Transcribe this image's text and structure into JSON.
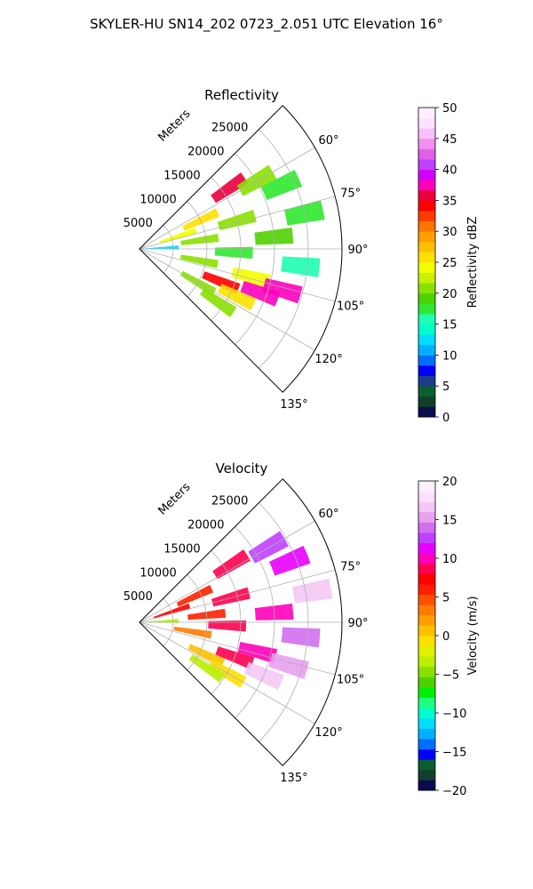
{
  "figure": {
    "suptitle": "SKYLER-HU  SN14_202  0723_2.051 UTC Elevation 16°"
  },
  "chart_data": [
    {
      "type": "heatmap",
      "title": "Reflectivity",
      "radial_label": "Meters",
      "r_ticks": [
        5000,
        10000,
        15000,
        20000,
        25000
      ],
      "r_max": 30000,
      "azimuth_range_deg": [
        45,
        135
      ],
      "azimuth_ticks": [
        "60°",
        "75°",
        "90°",
        "105°",
        "120°",
        "135°"
      ],
      "colorbar": {
        "label": "Reflectivity dBZ",
        "range": [
          0,
          50
        ],
        "ticks": [
          "0",
          "5",
          "10",
          "15",
          "20",
          "25",
          "30",
          "35",
          "40",
          "45",
          "50"
        ]
      },
      "cells": [
        {
          "az": 56,
          "r": 16000,
          "value": 36
        },
        {
          "az": 60,
          "r": 20000,
          "value": 20
        },
        {
          "az": 65,
          "r": 10000,
          "value": 25
        },
        {
          "az": 66,
          "r": 23000,
          "value": 18
        },
        {
          "az": 72,
          "r": 6000,
          "value": 24
        },
        {
          "az": 74,
          "r": 15000,
          "value": 21
        },
        {
          "az": 78,
          "r": 25000,
          "value": 17
        },
        {
          "az": 82,
          "r": 9000,
          "value": 20
        },
        {
          "az": 85,
          "r": 20000,
          "value": 19
        },
        {
          "az": 88,
          "r": 3000,
          "value": 12
        },
        {
          "az": 92,
          "r": 14000,
          "value": 18
        },
        {
          "az": 96,
          "r": 24000,
          "value": 16
        },
        {
          "az": 101,
          "r": 9000,
          "value": 20
        },
        {
          "az": 104,
          "r": 17000,
          "value": 24
        },
        {
          "az": 106,
          "r": 22000,
          "value": 38
        },
        {
          "az": 110,
          "r": 19000,
          "value": 37
        },
        {
          "az": 112,
          "r": 13000,
          "value": 34
        },
        {
          "az": 116,
          "r": 16000,
          "value": 25
        },
        {
          "az": 120,
          "r": 10000,
          "value": 21
        },
        {
          "az": 124,
          "r": 14000,
          "value": 20
        }
      ]
    },
    {
      "type": "heatmap",
      "title": "Velocity",
      "radial_label": "Meters",
      "r_ticks": [
        5000,
        10000,
        15000,
        20000,
        25000
      ],
      "r_max": 30000,
      "azimuth_range_deg": [
        45,
        135
      ],
      "azimuth_ticks": [
        "60°",
        "75°",
        "90°",
        "105°",
        "120°",
        "135°"
      ],
      "colorbar": {
        "label": "Velocity (m/s)",
        "range": [
          -20,
          20
        ],
        "ticks": [
          "−20",
          "−15",
          "−10",
          "−5",
          "0",
          "5",
          "10",
          "15",
          "20"
        ]
      },
      "cells": [
        {
          "az": 58,
          "r": 16000,
          "value": 9
        },
        {
          "az": 60,
          "r": 22000,
          "value": 12
        },
        {
          "az": 65,
          "r": 9000,
          "value": 6
        },
        {
          "az": 68,
          "r": 24000,
          "value": 11
        },
        {
          "az": 72,
          "r": 5000,
          "value": 7
        },
        {
          "az": 75,
          "r": 14000,
          "value": 8
        },
        {
          "az": 80,
          "r": 26000,
          "value": 16
        },
        {
          "az": 84,
          "r": 10000,
          "value": 6
        },
        {
          "az": 86,
          "r": 20000,
          "value": 10
        },
        {
          "az": 88,
          "r": 3000,
          "value": -3
        },
        {
          "az": 92,
          "r": 13000,
          "value": 9
        },
        {
          "az": 95,
          "r": 24000,
          "value": 14
        },
        {
          "az": 100,
          "r": 8000,
          "value": 3
        },
        {
          "az": 104,
          "r": 18000,
          "value": 10
        },
        {
          "az": 106,
          "r": 23000,
          "value": 15
        },
        {
          "az": 110,
          "r": 15000,
          "value": 8
        },
        {
          "az": 113,
          "r": 20000,
          "value": 16
        },
        {
          "az": 116,
          "r": 11000,
          "value": 1
        },
        {
          "az": 120,
          "r": 15000,
          "value": -1
        },
        {
          "az": 124,
          "r": 12000,
          "value": -3
        }
      ]
    }
  ],
  "colormaps": {
    "reflectivity": [
      "#0b0b4f",
      "#123f2c",
      "#0a5f2f",
      "#1d3c8c",
      "#0000ff",
      "#006eff",
      "#00b0ff",
      "#00ddff",
      "#00ffcc",
      "#1effb0",
      "#30e830",
      "#4fd000",
      "#8ae000",
      "#c8f000",
      "#f2ff00",
      "#ffe000",
      "#ffc000",
      "#ff9f00",
      "#ff7400",
      "#ff3c00",
      "#ff0000",
      "#e8003c",
      "#ff00bb",
      "#d100ff",
      "#c040ff",
      "#e060e8",
      "#f090f0",
      "#f8c0f8",
      "#ffe2ff",
      "#fff0ff"
    ],
    "velocity": [
      "#0b0b4f",
      "#123f2c",
      "#0a5f2f",
      "#0000ff",
      "#006eff",
      "#00b0ff",
      "#00ddff",
      "#00ffcc",
      "#1eff80",
      "#00f000",
      "#4fd000",
      "#8ae000",
      "#b8f000",
      "#e0f000",
      "#ffe000",
      "#ffc000",
      "#ffa000",
      "#ff7c00",
      "#ff5000",
      "#ff2000",
      "#ff0000",
      "#ff0050",
      "#ff00bb",
      "#e800ff",
      "#c040ff",
      "#d070f0",
      "#e8a0f0",
      "#f4c8f4",
      "#fce0fc",
      "#fff0ff"
    ]
  }
}
